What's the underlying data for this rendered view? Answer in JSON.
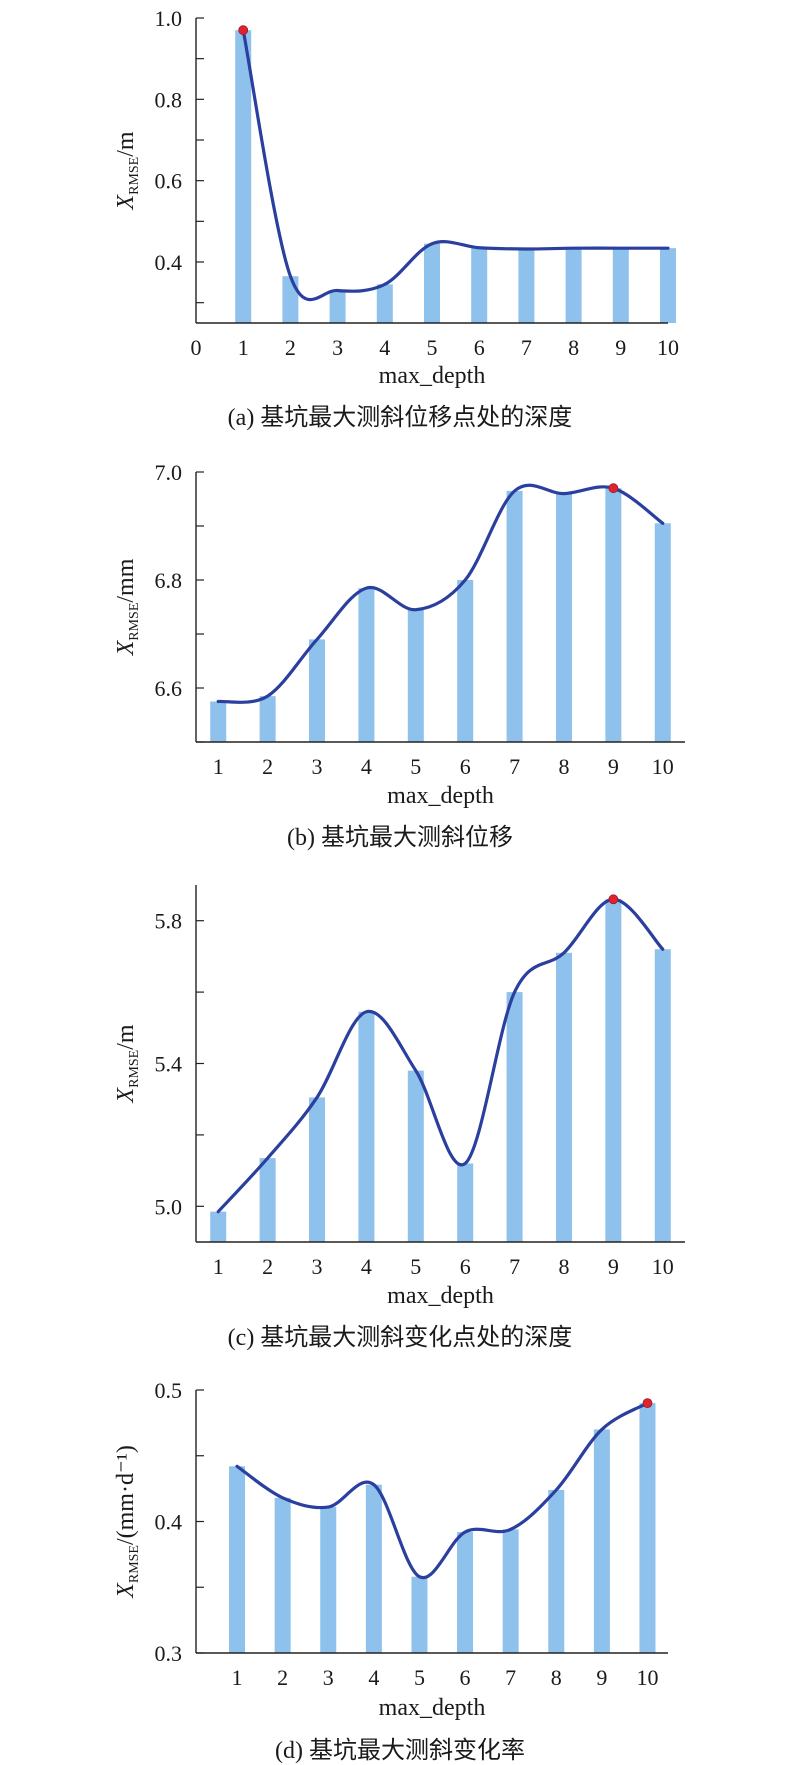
{
  "chart_data": [
    {
      "type": "bar",
      "panel": "a",
      "title": "",
      "caption": "(a) 基坑最大测斜位移点处的深度",
      "xlabel": "max_depth",
      "ylabel_var": "X",
      "ylabel_sub": "RMSE",
      "ylabel_unit": "/m",
      "x_ticks": [
        "0",
        "1",
        "2",
        "3",
        "4",
        "5",
        "6",
        "7",
        "8",
        "9",
        "10"
      ],
      "y_ticks": [
        "0.4",
        "0.6",
        "0.8",
        "1.0"
      ],
      "y_tick_values": [
        0.4,
        0.6,
        0.8,
        1.0
      ],
      "xlim": [
        0,
        10
      ],
      "ylim": [
        0.25,
        1.0
      ],
      "categories": [
        1,
        2,
        3,
        4,
        5,
        6,
        7,
        8,
        9,
        10
      ],
      "values": [
        0.97,
        0.365,
        0.33,
        0.345,
        0.445,
        0.435,
        0.432,
        0.434,
        0.434,
        0.434
      ],
      "max_index": 0,
      "grid": false
    },
    {
      "type": "bar",
      "panel": "b",
      "title": "",
      "caption": "(b) 基坑最大测斜位移",
      "xlabel": "max_depth",
      "ylabel_var": "X",
      "ylabel_sub": "RMSE",
      "ylabel_unit": "/mm",
      "x_ticks": [
        "1",
        "2",
        "3",
        "4",
        "5",
        "6",
        "7",
        "8",
        "9",
        "10"
      ],
      "y_ticks": [
        "6.6",
        "6.8",
        "7.0"
      ],
      "y_tick_values": [
        6.6,
        6.8,
        7.0
      ],
      "xlim": [
        0.55,
        10.45
      ],
      "ylim": [
        6.5,
        7.0
      ],
      "categories": [
        1,
        2,
        3,
        4,
        5,
        6,
        7,
        8,
        9,
        10
      ],
      "values": [
        6.575,
        6.585,
        6.69,
        6.785,
        6.745,
        6.8,
        6.965,
        6.96,
        6.97,
        6.905
      ],
      "max_index": 8,
      "grid": false
    },
    {
      "type": "bar",
      "panel": "c",
      "title": "",
      "caption": "(c) 基坑最大测斜变化点处的深度",
      "xlabel": "max_depth",
      "ylabel_var": "X",
      "ylabel_sub": "RMSE",
      "ylabel_unit": "/m",
      "x_ticks": [
        "1",
        "2",
        "3",
        "4",
        "5",
        "6",
        "7",
        "8",
        "9",
        "10"
      ],
      "y_ticks": [
        "5.0",
        "5.4",
        "5.8"
      ],
      "y_tick_values": [
        5.0,
        5.4,
        5.8
      ],
      "xlim": [
        0.55,
        10.45
      ],
      "ylim": [
        4.9,
        5.9
      ],
      "categories": [
        1,
        2,
        3,
        4,
        5,
        6,
        7,
        8,
        9,
        10
      ],
      "values": [
        4.985,
        5.135,
        5.305,
        5.545,
        5.38,
        5.12,
        5.6,
        5.71,
        5.86,
        5.72
      ],
      "max_index": 8,
      "grid": false
    },
    {
      "type": "bar",
      "panel": "d",
      "title": "",
      "caption": "(d) 基坑最大测斜变化率",
      "xlabel": "max_depth",
      "ylabel_var": "X",
      "ylabel_sub": "RMSE",
      "ylabel_unit": "/(mm·d⁻¹)",
      "x_ticks": [
        "1",
        "2",
        "3",
        "4",
        "5",
        "6",
        "7",
        "8",
        "9",
        "10"
      ],
      "y_ticks": [
        "0.3",
        "0.4",
        "0.5"
      ],
      "y_tick_values": [
        0.3,
        0.4,
        0.5
      ],
      "xlim": [
        0.1,
        10.45
      ],
      "ylim": [
        0.3,
        0.5
      ],
      "categories": [
        1,
        2,
        3,
        4,
        5,
        6,
        7,
        8,
        9,
        10
      ],
      "values": [
        0.442,
        0.418,
        0.411,
        0.428,
        0.358,
        0.392,
        0.394,
        0.424,
        0.47,
        0.49
      ],
      "max_index": 9,
      "grid": false
    }
  ]
}
